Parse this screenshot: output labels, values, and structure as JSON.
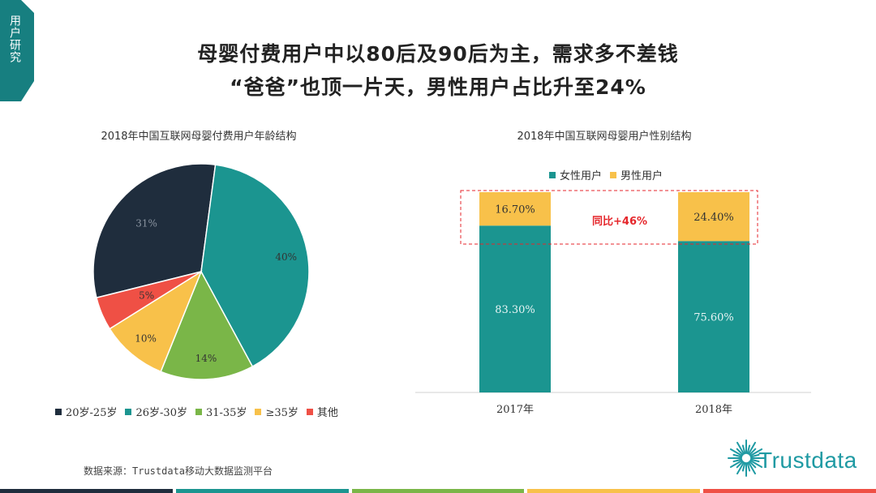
{
  "section_tag": "用户研究",
  "headline": {
    "line1": "母婴付费用户中以80后及90后为主，需求多不差钱",
    "line2": "“爸爸”也顶一片天，男性用户占比升至24%"
  },
  "colors": {
    "teal": "#1b9590",
    "navy": "#1f2d3d",
    "green": "#7ab648",
    "yellow": "#f8c14a",
    "red": "#ef5045",
    "dark_teal": "#177f80"
  },
  "chart_data": [
    {
      "type": "pie",
      "title": "2018年中国互联网母婴付费用户年龄结构",
      "labels": [
        "20岁-25岁",
        "26岁-30岁",
        "31-35岁",
        "≥35岁",
        "其他"
      ],
      "values": [
        31,
        40,
        14,
        10,
        5
      ],
      "value_labels": [
        "31%",
        "40%",
        "14%",
        "10%",
        "5%"
      ],
      "legend_position": "bottom"
    },
    {
      "type": "bar",
      "stacked": true,
      "title": "2018年中国互联网母婴用户性别结构",
      "categories": [
        "2017年",
        "2018年"
      ],
      "series": [
        {
          "name": "女性用户",
          "values": [
            83.3,
            75.6
          ],
          "value_labels": [
            "83.30%",
            "75.60%"
          ]
        },
        {
          "name": "男性用户",
          "values": [
            16.7,
            24.4
          ],
          "value_labels": [
            "16.70%",
            "24.40%"
          ]
        }
      ],
      "ylim": [
        0,
        100
      ],
      "legend_position": "top",
      "annotation": "同比+46%"
    }
  ],
  "source": "数据来源：Trustdata移动大数据监测平台",
  "logo_text": "Trustdata"
}
